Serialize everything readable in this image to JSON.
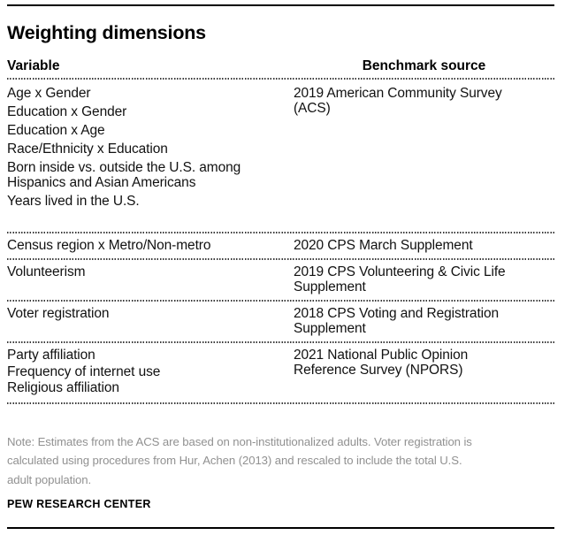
{
  "title": "Weighting dimensions",
  "table": {
    "headers": {
      "variable": "Variable",
      "benchmark": "Benchmark source"
    },
    "rows": [
      {
        "variables": [
          "Age x Gender",
          "Education x Gender",
          "Education x Age",
          "Race/Ethnicity x Education",
          [
            "Born inside vs. outside the U.S. among",
            "Hispanics and Asian Americans"
          ],
          "Years lived in the U.S."
        ],
        "benchmark": [
          "2019 American Community Survey",
          "(ACS)"
        ]
      },
      {
        "variables": [
          "Census region x Metro/Non-metro"
        ],
        "benchmark": [
          "2020 CPS March Supplement"
        ]
      },
      {
        "variables": [
          "Volunteerism"
        ],
        "benchmark": [
          "2019 CPS Volunteering & Civic Life",
          "Supplement"
        ]
      },
      {
        "variables": [
          "Voter registration"
        ],
        "benchmark": [
          "2018 CPS Voting and Registration",
          "Supplement"
        ]
      },
      {
        "variables": [
          "Party affiliation",
          "Frequency of internet use",
          "Religious affiliation"
        ],
        "benchmark": [
          "2021 National Public Opinion",
          "Reference Survey (NPORS)"
        ]
      }
    ]
  },
  "note_lines": [
    "Note: Estimates from the ACS are based on non-institutionalized adults. Voter registration is",
    "calculated using procedures from Hur, Achen (2013) and rescaled to include the total U.S.",
    "adult population."
  ],
  "footer": "PEW RESEARCH CENTER",
  "colors": {
    "background": "#ffffff",
    "text": "#111111",
    "note_text": "#919191",
    "solid_rule": "#000000",
    "dotted_rule": "#3a3a3a"
  },
  "chart_data": {
    "type": "table",
    "title": "Weighting dimensions",
    "columns": [
      "Variable",
      "Benchmark source"
    ],
    "rows": [
      {
        "variable": [
          "Age x Gender",
          "Education x Gender",
          "Education x Age",
          "Race/Ethnicity x Education",
          "Born inside vs. outside the U.S. among Hispanics and Asian Americans",
          "Years lived in the U.S."
        ],
        "benchmark_source": "2019 American Community Survey (ACS)"
      },
      {
        "variable": [
          "Census region x Metro/Non-metro"
        ],
        "benchmark_source": "2020 CPS March Supplement"
      },
      {
        "variable": [
          "Volunteerism"
        ],
        "benchmark_source": "2019 CPS Volunteering & Civic Life Supplement"
      },
      {
        "variable": [
          "Voter registration"
        ],
        "benchmark_source": "2018 CPS Voting and Registration Supplement"
      },
      {
        "variable": [
          "Party affiliation",
          "Frequency of internet use",
          "Religious affiliation"
        ],
        "benchmark_source": "2021 National Public Opinion Reference Survey (NPORS)"
      }
    ],
    "note": "Note: Estimates from the ACS are based on non-institutionalized adults. Voter registration is calculated using procedures from Hur, Achen (2013) and rescaled to include the total U.S. adult population.",
    "source": "PEW RESEARCH CENTER"
  }
}
